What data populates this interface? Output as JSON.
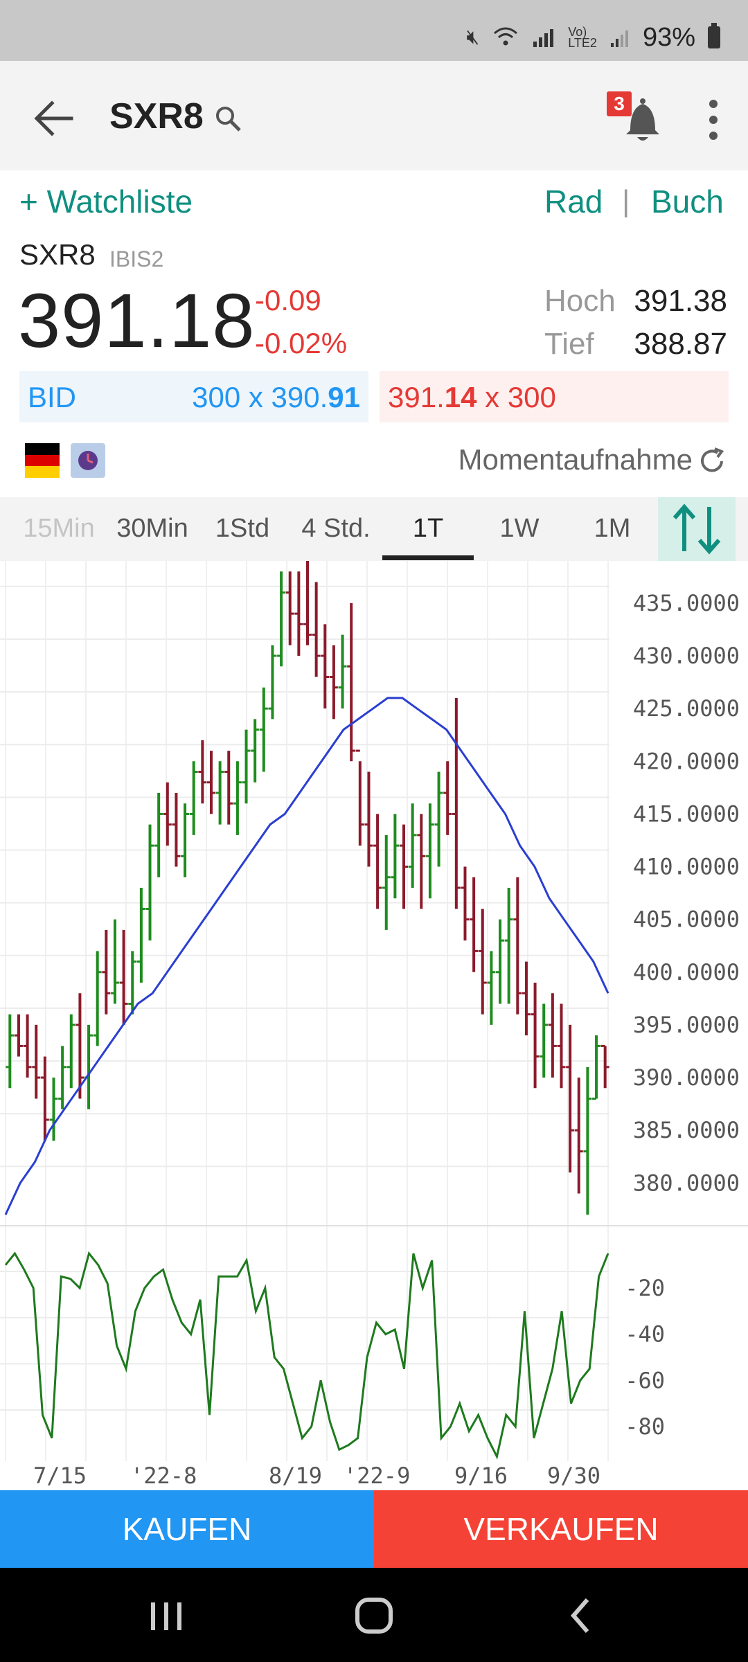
{
  "status": {
    "battery": "93%",
    "icons": [
      "mute-icon",
      "wifi-icon",
      "signal-icon",
      "volte-icon",
      "battery-icon"
    ]
  },
  "header": {
    "title": "SXR8",
    "notification_count": "3"
  },
  "watch": {
    "add": "+ Watchliste",
    "rad": "Rad",
    "separator": "|",
    "buch": "Buch"
  },
  "quote": {
    "symbol": "SXR8",
    "exchange": "IBIS2",
    "price": "391.18",
    "change_abs": "-0.09",
    "change_pct": "-0.02%",
    "high_label": "Hoch",
    "high": "391.38",
    "low_label": "Tief",
    "low": "388.87",
    "bid_label": "BID",
    "bid_size": "300",
    "bid_x": "x",
    "bid_price_main": "390.",
    "bid_price_bold": "91",
    "ask_price_main": "391.",
    "ask_price_bold": "14",
    "ask_x": "x",
    "ask_size": "300",
    "snapshot": "Momentaufnahme"
  },
  "tabs": [
    "15Min",
    "30Min",
    "1Std",
    "4 Std.",
    "1T",
    "1W",
    "1M"
  ],
  "active_tab": "1T",
  "chart_data": {
    "type": "ohlc",
    "y_ticks": [
      "435.0000",
      "430.0000",
      "425.0000",
      "420.0000",
      "415.0000",
      "410.0000",
      "405.0000",
      "400.0000",
      "395.0000",
      "390.0000",
      "385.0000",
      "380.0000"
    ],
    "ylim": [
      377,
      439
    ],
    "x_ticks": [
      "7/15",
      "'22-8",
      "8/19",
      "'22-9",
      "9/16",
      "9/30"
    ],
    "colors": {
      "up": "#1e8c1e",
      "down": "#8b1a2b",
      "ma": "#2a3fd1",
      "osc": "#1e7a1e"
    },
    "bars": [
      [
        391,
        396,
        389,
        394
      ],
      [
        394,
        396,
        392,
        393
      ],
      [
        393,
        396,
        390,
        391
      ],
      [
        391,
        395,
        388,
        390
      ],
      [
        390,
        392,
        384,
        386
      ],
      [
        386,
        390,
        384,
        388
      ],
      [
        388,
        393,
        387,
        391
      ],
      [
        391,
        396,
        389,
        395
      ],
      [
        395,
        398,
        388,
        390
      ],
      [
        390,
        395,
        387,
        394
      ],
      [
        394,
        402,
        393,
        400
      ],
      [
        400,
        404,
        396,
        398
      ],
      [
        398,
        405,
        397,
        399
      ],
      [
        399,
        404,
        395,
        397
      ],
      [
        397,
        402,
        396,
        401
      ],
      [
        401,
        408,
        399,
        406
      ],
      [
        406,
        414,
        403,
        412
      ],
      [
        412,
        417,
        409,
        415
      ],
      [
        415,
        418,
        412,
        414
      ],
      [
        414,
        417,
        410,
        411
      ],
      [
        411,
        416,
        409,
        415
      ],
      [
        415,
        420,
        413,
        419
      ],
      [
        419,
        422,
        416,
        418
      ],
      [
        418,
        421,
        415,
        417
      ],
      [
        417,
        420,
        414,
        419
      ],
      [
        419,
        421,
        414,
        416
      ],
      [
        416,
        420,
        413,
        418
      ],
      [
        418,
        423,
        416,
        421
      ],
      [
        421,
        424,
        418,
        423
      ],
      [
        423,
        427,
        419,
        425
      ],
      [
        425,
        431,
        424,
        430
      ],
      [
        430,
        438,
        429,
        436
      ],
      [
        436,
        438,
        431,
        434
      ],
      [
        434,
        438,
        430,
        433
      ],
      [
        433,
        439,
        431,
        432
      ],
      [
        432,
        437,
        428,
        430
      ],
      [
        430,
        433,
        425,
        428
      ],
      [
        428,
        431,
        424,
        427
      ],
      [
        427,
        432,
        425,
        429
      ],
      [
        429,
        435,
        420,
        421
      ],
      [
        421,
        420,
        412,
        414
      ],
      [
        414,
        419,
        410,
        412
      ],
      [
        412,
        415,
        406,
        408
      ],
      [
        408,
        413,
        404,
        409
      ],
      [
        409,
        415,
        407,
        412
      ],
      [
        412,
        414,
        406,
        410
      ],
      [
        410,
        416,
        408,
        413
      ],
      [
        413,
        415,
        406,
        411
      ],
      [
        411,
        416,
        407,
        414
      ],
      [
        414,
        419,
        410,
        417
      ],
      [
        417,
        420,
        413,
        415
      ],
      [
        415,
        426,
        406,
        408
      ],
      [
        408,
        410,
        403,
        405
      ],
      [
        405,
        409,
        400,
        402
      ],
      [
        402,
        406,
        396,
        399
      ],
      [
        399,
        402,
        395,
        400
      ],
      [
        400,
        405,
        397,
        403
      ],
      [
        403,
        408,
        397,
        405
      ],
      [
        405,
        409,
        396,
        398
      ],
      [
        398,
        401,
        394,
        396
      ],
      [
        396,
        399,
        389,
        392
      ],
      [
        392,
        397,
        390,
        395
      ],
      [
        395,
        398,
        390,
        393
      ],
      [
        393,
        397,
        389,
        391
      ],
      [
        391,
        395,
        381,
        385
      ],
      [
        385,
        390,
        379,
        383
      ],
      [
        383,
        391,
        377,
        388
      ],
      [
        388,
        394,
        388,
        393
      ],
      [
        393,
        393,
        389,
        391
      ]
    ],
    "ma": [
      377,
      380,
      382,
      385,
      387,
      389,
      391,
      393,
      395,
      397,
      398,
      400,
      402,
      404,
      406,
      408,
      410,
      412,
      414,
      415,
      417,
      419,
      421,
      423,
      424,
      425,
      426,
      426,
      425,
      424,
      423,
      421,
      419,
      417,
      415,
      412,
      410,
      407,
      405,
      403,
      401,
      398
    ],
    "oscillator": {
      "ticks": [
        "-20",
        "-40",
        "-60",
        "-80"
      ],
      "ylim": [
        -92,
        4
      ],
      "values": [
        -10,
        -5,
        -12,
        -20,
        -75,
        -85,
        -15,
        -16,
        -20,
        -5,
        -10,
        -18,
        -45,
        -55,
        -30,
        -20,
        -15,
        -12,
        -25,
        -35,
        -40,
        -25,
        -75,
        -15,
        -15,
        -15,
        -8,
        -30,
        -20,
        -50,
        -55,
        -70,
        -85,
        -80,
        -60,
        -78,
        -90,
        -88,
        -85,
        -50,
        -35,
        -40,
        -38,
        -55,
        -5,
        -20,
        -8,
        -85,
        -80,
        -70,
        -82,
        -75,
        -85,
        -93,
        -75,
        -80,
        -30,
        -85,
        -70,
        -55,
        -30,
        -70,
        -60,
        -55,
        -15,
        -5
      ]
    }
  },
  "actions": {
    "buy": "KAUFEN",
    "sell": "VERKAUFEN"
  },
  "nav": {
    "icons": [
      "recent-apps-icon",
      "home-icon",
      "back-icon"
    ]
  }
}
